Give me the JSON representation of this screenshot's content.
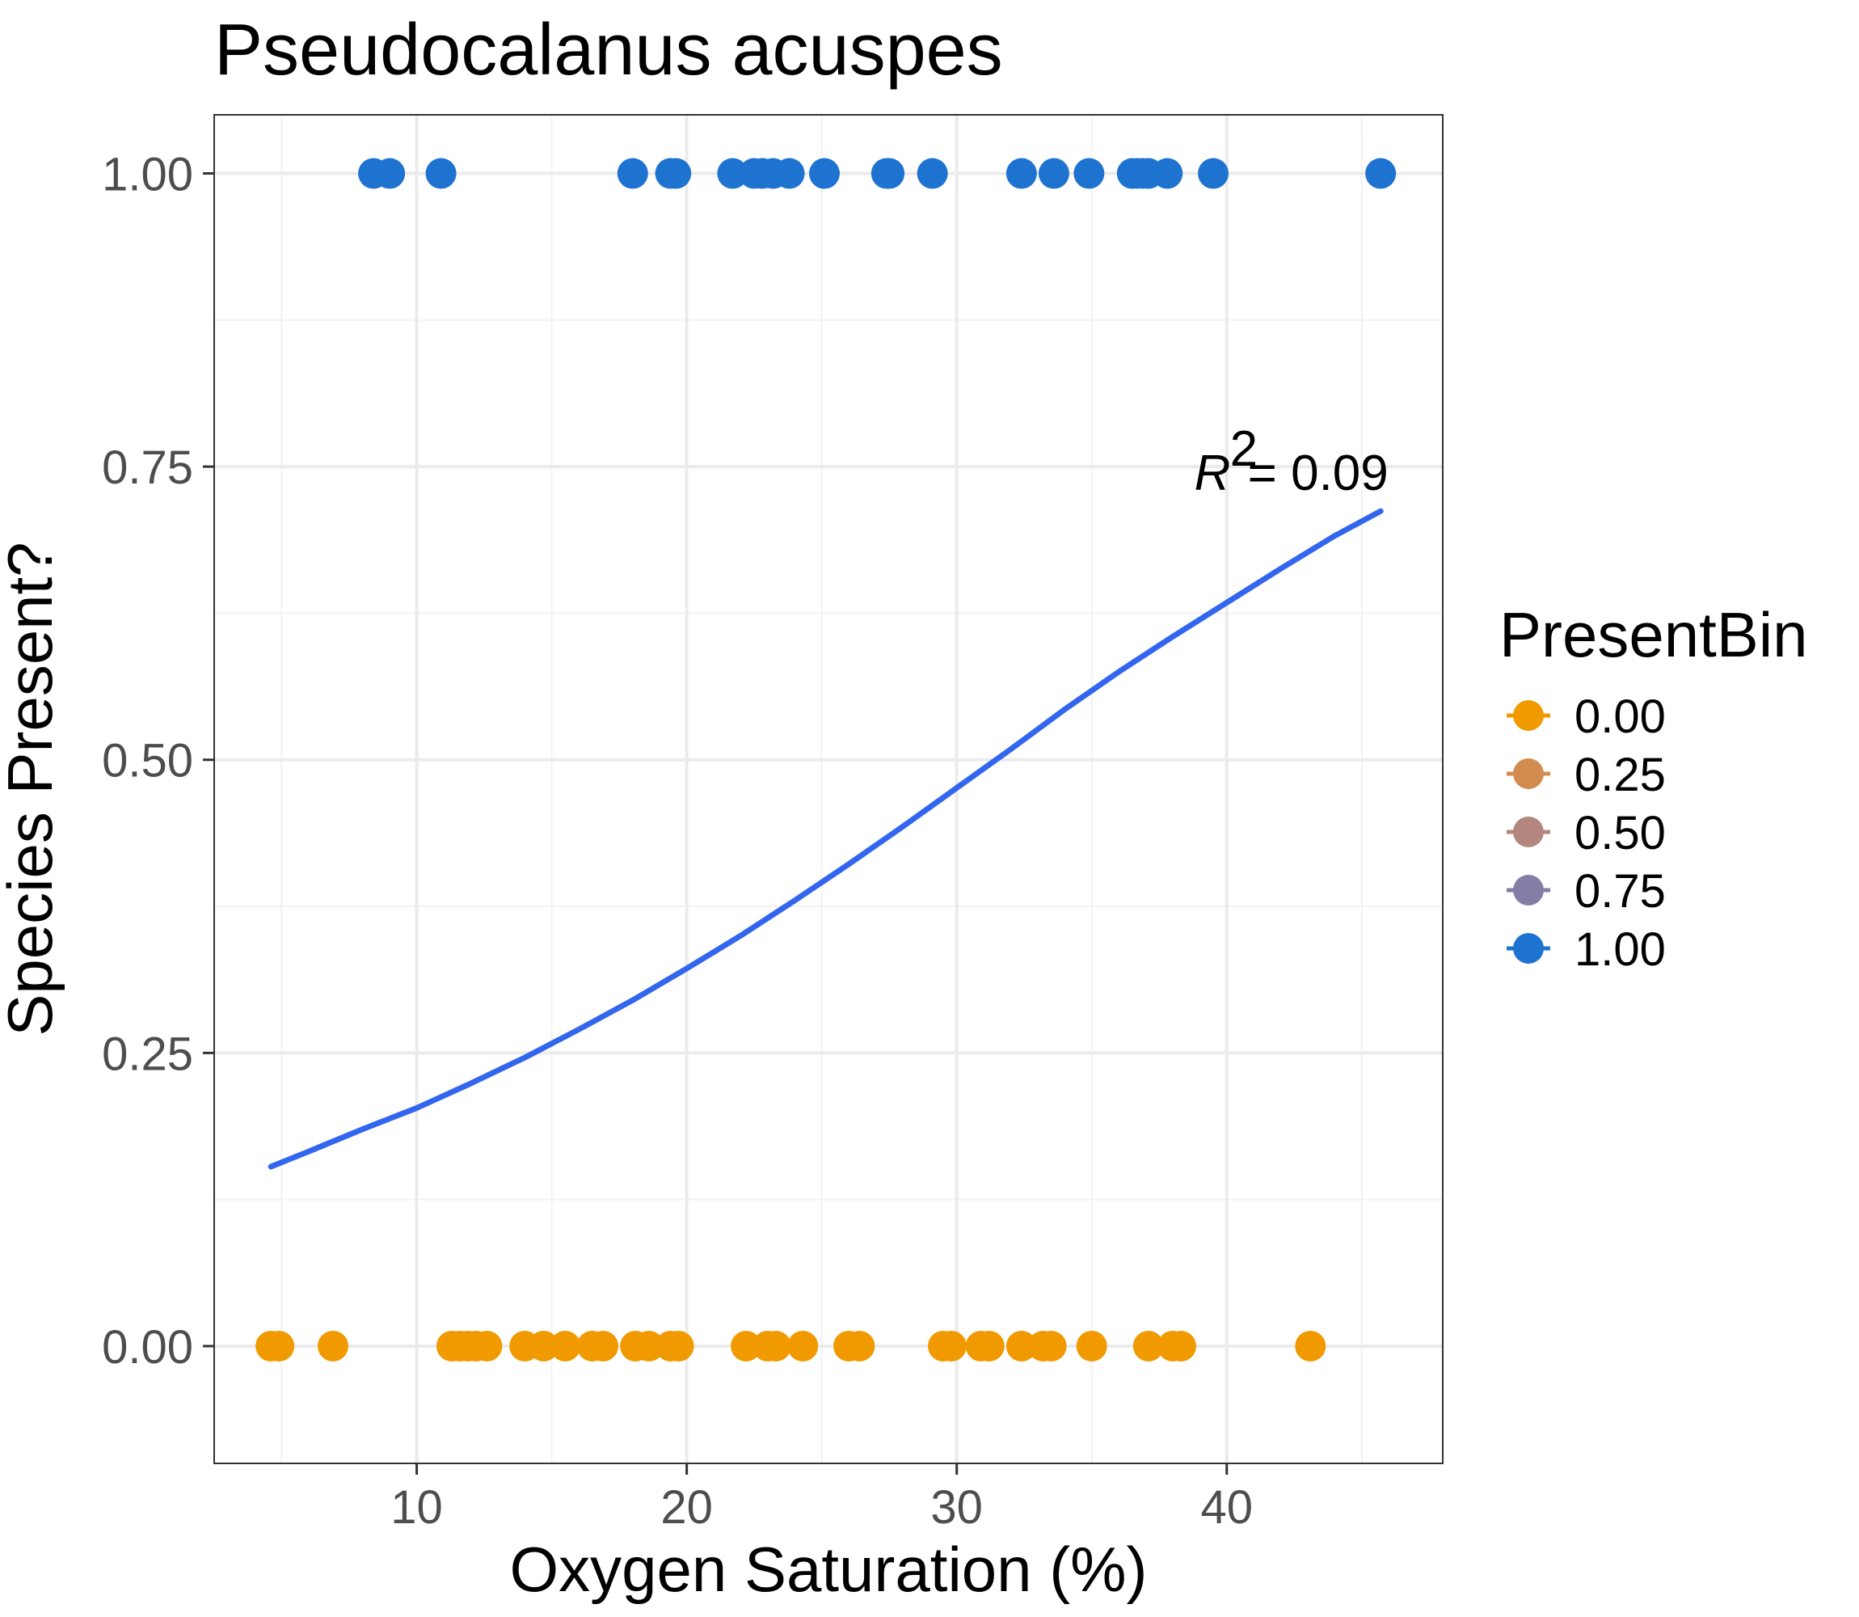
{
  "chart_data": {
    "type": "scatter",
    "title": "Pseudocalanus acuspes",
    "xlabel": "Oxygen Saturation (%)",
    "ylabel": "Species Present?",
    "xlim": [
      2.5,
      48
    ],
    "ylim": [
      -0.1,
      1.05
    ],
    "x_ticks": [
      10,
      20,
      30,
      40
    ],
    "x_tick_labels": [
      "10",
      "20",
      "30",
      "40"
    ],
    "y_ticks": [
      0,
      0.25,
      0.5,
      0.75,
      1.0
    ],
    "y_tick_labels": [
      "0.00",
      "0.25",
      "0.50",
      "0.75",
      "1.00"
    ],
    "grid": true,
    "legend": {
      "title": "PresentBin",
      "position": "right",
      "entries": [
        {
          "label": "0.00",
          "color": "#F09A00"
        },
        {
          "label": "0.25",
          "color": "#D38C50"
        },
        {
          "label": "0.50",
          "color": "#B3877D"
        },
        {
          "label": "0.75",
          "color": "#847DA6"
        },
        {
          "label": "1.00",
          "color": "#1E73D0"
        }
      ]
    },
    "series": [
      {
        "name": "1.00",
        "color": "#1E73D0",
        "y": 1.0,
        "x": [
          8.4,
          9.0,
          10.9,
          18.0,
          19.4,
          19.6,
          21.7,
          22.5,
          22.8,
          23.2,
          23.8,
          25.1,
          27.4,
          27.5,
          29.1,
          32.4,
          33.6,
          34.9,
          36.5,
          36.7,
          36.9,
          37.1,
          37.8,
          39.5,
          45.7
        ]
      },
      {
        "name": "0.00",
        "color": "#F09A00",
        "y": 0.0,
        "x": [
          4.6,
          4.9,
          6.9,
          11.3,
          11.6,
          11.9,
          12.2,
          12.6,
          14.0,
          14.7,
          15.5,
          16.5,
          16.9,
          18.1,
          18.6,
          19.4,
          19.7,
          22.2,
          23.0,
          23.3,
          24.3,
          26.0,
          26.4,
          29.5,
          29.8,
          30.9,
          31.2,
          32.4,
          33.2,
          33.5,
          35.0,
          37.1,
          38.0,
          38.3,
          43.1
        ]
      }
    ],
    "fit": {
      "color": "#3366EE",
      "x": [
        4.6,
        6.0,
        8.0,
        10.0,
        12.0,
        14.0,
        16.0,
        18.0,
        20.0,
        22.0,
        24.0,
        26.0,
        28.0,
        30.0,
        32.0,
        34.0,
        36.0,
        38.0,
        40.0,
        42.0,
        44.0,
        45.7
      ],
      "y": [
        0.153,
        0.166,
        0.185,
        0.203,
        0.224,
        0.246,
        0.27,
        0.295,
        0.322,
        0.35,
        0.38,
        0.411,
        0.443,
        0.476,
        0.509,
        0.543,
        0.575,
        0.605,
        0.634,
        0.663,
        0.691,
        0.712
      ]
    },
    "annotation": {
      "letter": "R",
      "superscript": "2",
      "text": " = 0.09",
      "x": 38.8,
      "y": 0.73
    }
  }
}
